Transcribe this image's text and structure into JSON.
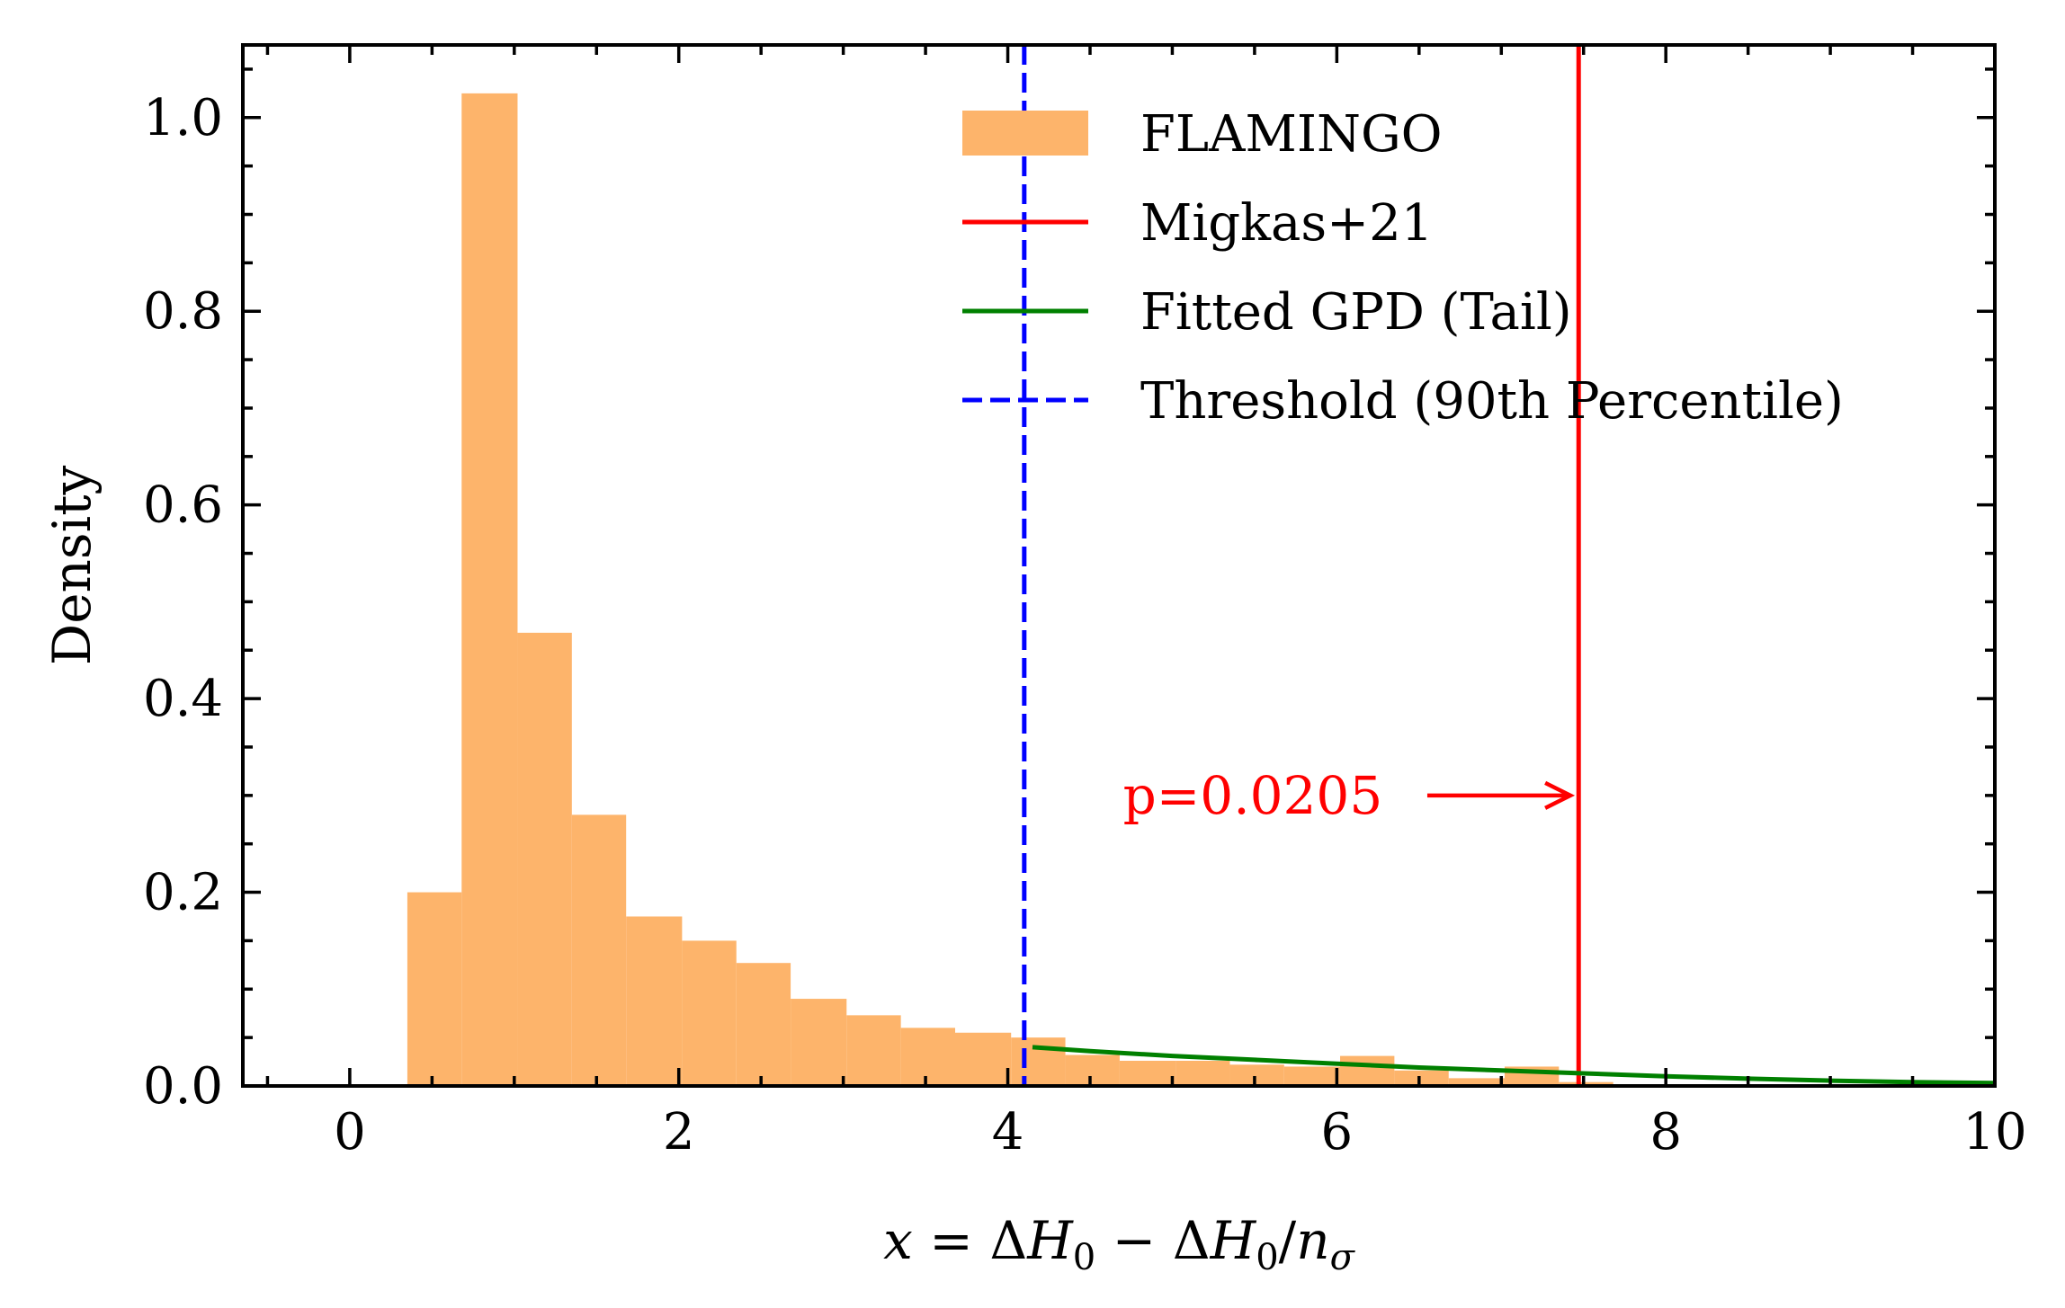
{
  "chart_data": {
    "type": "bar",
    "xlabel": "x = ΔH₀ − ΔH₀/n_σ",
    "ylabel": "Density",
    "xlim": [
      -0.65,
      10.0
    ],
    "ylim": [
      0.0,
      1.075
    ],
    "x_ticks": [
      {
        "value": 0,
        "label": "0"
      },
      {
        "value": 2,
        "label": "2"
      },
      {
        "value": 4,
        "label": "4"
      },
      {
        "value": 6,
        "label": "6"
      },
      {
        "value": 8,
        "label": "8"
      },
      {
        "value": 10,
        "label": "10"
      }
    ],
    "y_ticks": [
      {
        "value": 0.0,
        "label": "0.0"
      },
      {
        "value": 0.2,
        "label": "0.2"
      },
      {
        "value": 0.4,
        "label": "0.4"
      },
      {
        "value": 0.6,
        "label": "0.6"
      },
      {
        "value": 0.8,
        "label": "0.8"
      },
      {
        "value": 1.0,
        "label": "1.0"
      }
    ],
    "x_minor_step": 0.5,
    "y_minor_step": 0.05,
    "grid": false,
    "legend_position": "top-right",
    "histogram": {
      "name": "FLAMINGO",
      "color": "#fdb46b",
      "bins": [
        [
          0.35,
          0.68,
          0.2
        ],
        [
          0.68,
          1.02,
          1.025
        ],
        [
          1.02,
          1.35,
          0.468
        ],
        [
          1.35,
          1.68,
          0.28
        ],
        [
          1.68,
          2.02,
          0.175
        ],
        [
          2.02,
          2.35,
          0.15
        ],
        [
          2.35,
          2.68,
          0.127
        ],
        [
          2.68,
          3.02,
          0.09
        ],
        [
          3.02,
          3.35,
          0.073
        ],
        [
          3.35,
          3.68,
          0.06
        ],
        [
          3.68,
          4.02,
          0.055
        ],
        [
          4.02,
          4.35,
          0.05
        ],
        [
          4.35,
          4.68,
          0.032
        ],
        [
          4.68,
          5.02,
          0.026
        ],
        [
          5.02,
          5.35,
          0.026
        ],
        [
          5.35,
          5.68,
          0.022
        ],
        [
          5.68,
          6.02,
          0.02
        ],
        [
          6.02,
          6.35,
          0.031
        ],
        [
          6.35,
          6.68,
          0.016
        ],
        [
          6.68,
          7.02,
          0.008
        ],
        [
          7.02,
          7.35,
          0.02
        ],
        [
          7.35,
          7.68,
          0.004
        ]
      ]
    },
    "vlines": [
      {
        "name": "Migkas+21",
        "x": 7.47,
        "color": "#ff0000",
        "style": "solid"
      },
      {
        "name": "Threshold (90th Percentile)",
        "x": 4.1,
        "color": "#0000ff",
        "style": "dashed"
      }
    ],
    "fit_curve": {
      "name": "Fitted GPD (Tail)",
      "color": "#008000",
      "points": [
        [
          4.15,
          0.04
        ],
        [
          4.5,
          0.036
        ],
        [
          5.0,
          0.031
        ],
        [
          5.5,
          0.027
        ],
        [
          6.0,
          0.023
        ],
        [
          6.5,
          0.019
        ],
        [
          7.0,
          0.016
        ],
        [
          7.5,
          0.013
        ],
        [
          8.0,
          0.01
        ],
        [
          8.5,
          0.0075
        ],
        [
          9.0,
          0.0055
        ],
        [
          9.5,
          0.004
        ],
        [
          10.0,
          0.003
        ]
      ]
    },
    "legend": [
      {
        "label": "FLAMINGO",
        "kind": "patch",
        "color": "#fdb46b"
      },
      {
        "label": "Migkas+21",
        "kind": "line",
        "color": "#ff0000"
      },
      {
        "label": "Fitted GPD (Tail)",
        "kind": "line",
        "color": "#008000"
      },
      {
        "label": "Threshold (90th Percentile)",
        "kind": "dashed",
        "color": "#0000ff"
      }
    ],
    "annotation": {
      "text": "p=0.0205",
      "color": "#ff0000",
      "text_x": 4.7,
      "y": 0.3,
      "arrow_from_x": 6.55,
      "arrow_to_x": 7.42
    }
  }
}
